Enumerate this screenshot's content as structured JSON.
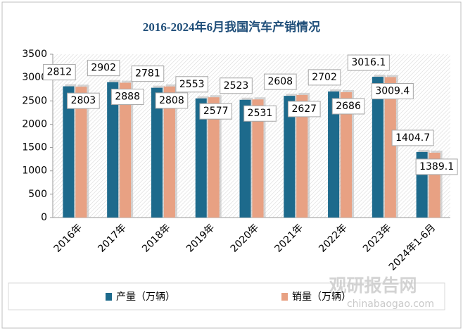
{
  "chart_data": {
    "type": "bar",
    "title": "2016-2024年6月我国汽车产销情况",
    "categories": [
      "2016年",
      "2017年",
      "2018年",
      "2019年",
      "2020年",
      "2021年",
      "2022年",
      "2023年",
      "2024年1-6月"
    ],
    "series": [
      {
        "name": "产量（万辆）",
        "color": "#1d6a8c",
        "values": [
          2812,
          2902,
          2781,
          2553,
          2523,
          2608,
          2702,
          3016.1,
          1404.7
        ]
      },
      {
        "name": "销量（万辆）",
        "color": "#e8a183",
        "values": [
          2803,
          2888,
          2808,
          2577,
          2531,
          2627,
          2686,
          3009.4,
          1389.1
        ]
      }
    ],
    "ylim": [
      0,
      3500
    ],
    "yticks": [
      0,
      500,
      1000,
      1500,
      2000,
      2500,
      3000,
      3500
    ],
    "legend": "bottom",
    "annotations": [
      "观研报告网",
      "chinabaogao.com"
    ]
  }
}
